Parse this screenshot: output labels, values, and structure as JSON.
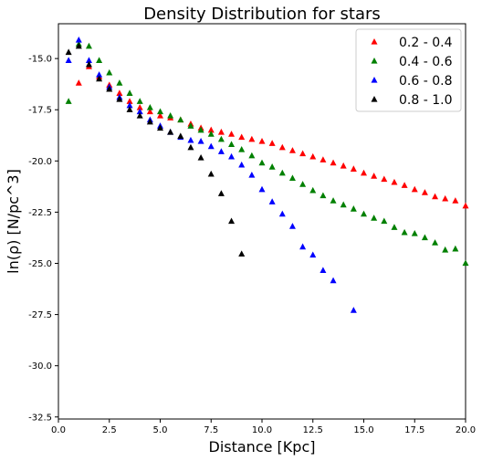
{
  "chart_data": {
    "type": "scatter",
    "title": "Density Distribution for stars",
    "xlabel": "Distance [Kpc]",
    "ylabel": "ln(ρ)   [N/pc^3]",
    "xlim": [
      0,
      20
    ],
    "ylim": [
      -32.6,
      -13.3
    ],
    "xticks": [
      "0.0",
      "2.5",
      "5.0",
      "7.5",
      "10.0",
      "12.5",
      "15.0",
      "17.5",
      "20.0"
    ],
    "yticks": [
      "-15.0",
      "-17.5",
      "-20.0",
      "-22.5",
      "-25.0",
      "-27.5",
      "-30.0",
      "-32.5"
    ],
    "grid": false,
    "legend_position": "top-right",
    "marker": "triangle",
    "series": [
      {
        "name": "0.2 - 0.4",
        "color": "#ff0000",
        "x": [
          1.0,
          1.5,
          2.0,
          2.5,
          3.0,
          3.5,
          4.0,
          4.5,
          5.0,
          5.5,
          6.0,
          6.5,
          7.0,
          7.5,
          8.0,
          8.5,
          9.0,
          9.5,
          10.0,
          10.5,
          11.0,
          11.5,
          12.0,
          12.5,
          13.0,
          13.5,
          14.0,
          14.5,
          15.0,
          15.5,
          16.0,
          16.5,
          17.0,
          17.5,
          18.0,
          18.5,
          19.0,
          19.5,
          20.0
        ],
        "y": [
          -16.2,
          -15.4,
          -15.9,
          -16.3,
          -16.7,
          -17.1,
          -17.4,
          -17.6,
          -17.8,
          -17.9,
          -18.0,
          -18.2,
          -18.4,
          -18.5,
          -18.6,
          -18.7,
          -18.85,
          -18.95,
          -19.05,
          -19.15,
          -19.35,
          -19.5,
          -19.65,
          -19.8,
          -19.95,
          -20.1,
          -20.25,
          -20.4,
          -20.6,
          -20.75,
          -20.9,
          -21.05,
          -21.2,
          -21.4,
          -21.55,
          -21.75,
          -21.85,
          -21.95,
          -22.2
        ]
      },
      {
        "name": "0.4 - 0.6",
        "color": "#008000",
        "x": [
          0.5,
          1.0,
          1.5,
          2.0,
          2.5,
          3.0,
          3.5,
          4.0,
          4.5,
          5.0,
          5.5,
          6.0,
          6.5,
          7.0,
          7.5,
          8.0,
          8.5,
          9.0,
          9.5,
          10.0,
          10.5,
          11.0,
          11.5,
          12.0,
          12.5,
          13.0,
          13.5,
          14.0,
          14.5,
          15.0,
          15.5,
          16.0,
          16.5,
          17.0,
          17.5,
          18.0,
          18.5,
          19.0,
          19.5,
          20.0
        ],
        "y": [
          -17.1,
          -14.3,
          -14.4,
          -15.1,
          -15.7,
          -16.2,
          -16.7,
          -17.1,
          -17.4,
          -17.6,
          -17.8,
          -18.0,
          -18.3,
          -18.5,
          -18.7,
          -18.95,
          -19.2,
          -19.45,
          -19.75,
          -20.1,
          -20.3,
          -20.6,
          -20.85,
          -21.15,
          -21.45,
          -21.7,
          -21.95,
          -22.15,
          -22.35,
          -22.6,
          -22.8,
          -22.95,
          -23.25,
          -23.5,
          -23.55,
          -23.75,
          -24.0,
          -24.35,
          -24.3,
          -25.0
        ]
      },
      {
        "name": "0.6 - 0.8",
        "color": "#0000ff",
        "x": [
          0.5,
          1.0,
          1.5,
          2.0,
          2.5,
          3.0,
          3.5,
          4.0,
          4.5,
          5.0,
          5.5,
          6.0,
          6.5,
          7.0,
          7.5,
          8.0,
          8.5,
          9.0,
          9.5,
          10.0,
          10.5,
          11.0,
          11.5,
          12.0,
          12.5,
          13.0,
          13.5,
          14.5
        ],
        "y": [
          -15.1,
          -14.1,
          -15.1,
          -15.8,
          -16.4,
          -16.9,
          -17.3,
          -17.6,
          -18.0,
          -18.3,
          -18.6,
          -18.85,
          -19.0,
          -19.05,
          -19.3,
          -19.55,
          -19.8,
          -20.2,
          -20.7,
          -21.4,
          -22.0,
          -22.6,
          -23.2,
          -24.2,
          -24.6,
          -25.35,
          -25.85,
          -27.3
        ]
      },
      {
        "name": "0.8 - 1.0",
        "color": "#000000",
        "x": [
          0.5,
          1.0,
          1.5,
          2.0,
          2.5,
          3.0,
          3.5,
          4.0,
          4.5,
          5.0,
          5.5,
          6.0,
          6.5,
          7.0,
          7.5,
          8.0,
          8.5,
          9.0
        ],
        "y": [
          -14.7,
          -14.4,
          -15.3,
          -16.0,
          -16.5,
          -17.0,
          -17.5,
          -17.8,
          -18.1,
          -18.4,
          -18.6,
          -18.8,
          -19.35,
          -19.85,
          -20.65,
          -21.6,
          -22.95,
          -24.55
        ]
      }
    ]
  }
}
